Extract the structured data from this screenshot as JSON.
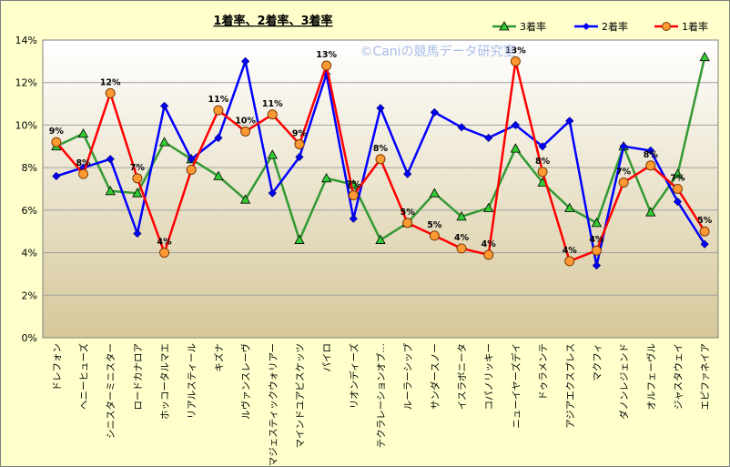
{
  "chart_data": {
    "type": "line",
    "title": "1着率、2着率、3着率",
    "watermark": "©Caniの競馬データ研究室",
    "categories": [
      "ドレフォン",
      "ヘニーヒューズ",
      "シニスターミニスター",
      "ロードカナロア",
      "ホッコータルマエ",
      "リアルスティール",
      "キズナ",
      "ルヴァンスレーヴ",
      "マジェスティックウォリアー",
      "マインドユアビスケッツ",
      "パイロ",
      "リオンディーズ",
      "テクラレーションオブ…",
      "ルーラーシップ",
      "サンダースノー",
      "イスラボニータ",
      "コパノリッキー",
      "ニューイヤーズデイ",
      "ドゥラメンテ",
      "アジアエクスプレス",
      "マクフィ",
      "ダノンレジェンド",
      "オルフェーヴル",
      "ジャスタウェイ",
      "エピファネイア"
    ],
    "y_ticks": [
      "0%",
      "2%",
      "4%",
      "6%",
      "8%",
      "10%",
      "12%",
      "14%"
    ],
    "ylim": [
      0,
      14
    ],
    "grid": true,
    "legend_position": "top-right",
    "series": [
      {
        "name": "3着率",
        "color": "#339933",
        "marker": "triangle",
        "values": [
          9.0,
          9.6,
          6.9,
          6.8,
          9.2,
          8.4,
          7.6,
          6.5,
          8.6,
          4.6,
          7.5,
          7.2,
          4.6,
          5.4,
          6.8,
          5.7,
          6.1,
          8.9,
          7.3,
          6.1,
          5.4,
          9.0,
          5.9,
          7.7,
          13.2
        ]
      },
      {
        "name": "2着率",
        "color": "#0000ff",
        "marker": "diamond",
        "values": [
          7.6,
          8.0,
          8.4,
          4.9,
          10.9,
          8.4,
          9.4,
          13.0,
          6.8,
          8.5,
          12.4,
          5.6,
          10.8,
          7.7,
          10.6,
          9.9,
          9.4,
          10.0,
          9.0,
          10.2,
          3.4,
          9.0,
          8.8,
          6.4,
          4.4
        ]
      },
      {
        "name": "1着率",
        "color": "#ff0000",
        "marker": "circle",
        "marker_fill": "#ff9933",
        "values": [
          9.2,
          7.7,
          11.5,
          7.5,
          4.0,
          7.9,
          10.7,
          9.7,
          10.5,
          9.1,
          12.8,
          6.7,
          8.4,
          5.4,
          4.8,
          4.2,
          3.9,
          13.0,
          7.8,
          3.6,
          4.1,
          7.3,
          8.1,
          7.0,
          5.0
        ]
      }
    ],
    "data_labels": [
      "9%",
      "8%",
      "12%",
      "7%",
      "4%",
      "",
      "11%",
      "10%",
      "11%",
      "9%",
      "13%",
      "7%",
      "8%",
      "5%",
      "5%",
      "4%",
      "4%",
      "13%",
      "8%",
      "4%",
      "4%",
      "7%",
      "8%",
      "7%",
      "5%"
    ]
  }
}
